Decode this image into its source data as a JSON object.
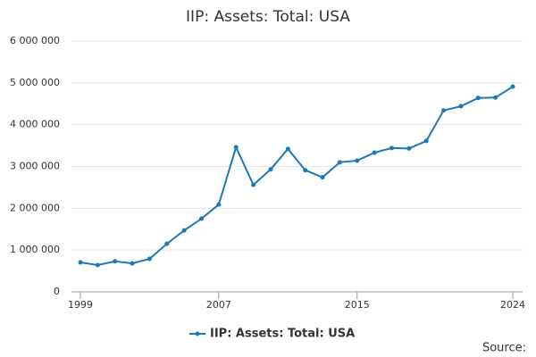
{
  "chart_data": {
    "type": "line",
    "title": "IIP: Assets: Total: USA",
    "x": [
      1999,
      2000,
      2001,
      2002,
      2003,
      2004,
      2005,
      2006,
      2007,
      2008,
      2009,
      2010,
      2011,
      2012,
      2013,
      2014,
      2015,
      2016,
      2017,
      2018,
      2019,
      2020,
      2021,
      2022,
      2023,
      2024
    ],
    "series": [
      {
        "name": "IIP: Assets: Total: USA",
        "color": "#1a7ab5",
        "values": [
          705000,
          640000,
          730000,
          680000,
          790000,
          1150000,
          1470000,
          1750000,
          2090000,
          3460000,
          2560000,
          2930000,
          3420000,
          2910000,
          2740000,
          3100000,
          3140000,
          3330000,
          3440000,
          3430000,
          3610000,
          4340000,
          4440000,
          4640000,
          4650000,
          4910000
        ]
      }
    ],
    "xlim": [
      1999,
      2024
    ],
    "xticks": [
      1999,
      2007,
      2015,
      2024
    ],
    "ylim": [
      0,
      6000000
    ],
    "yticks": [
      {
        "value": 0,
        "label": "0"
      },
      {
        "value": 1000000,
        "label": "1 000 000"
      },
      {
        "value": 2000000,
        "label": "2 000 000"
      },
      {
        "value": 3000000,
        "label": "3 000 000"
      },
      {
        "value": 4000000,
        "label": "4 000 000"
      },
      {
        "value": 5000000,
        "label": "5 000 000"
      },
      {
        "value": 6000000,
        "label": "6 000 000"
      }
    ],
    "grid": true,
    "legend": "bottom",
    "source": "Source:"
  }
}
